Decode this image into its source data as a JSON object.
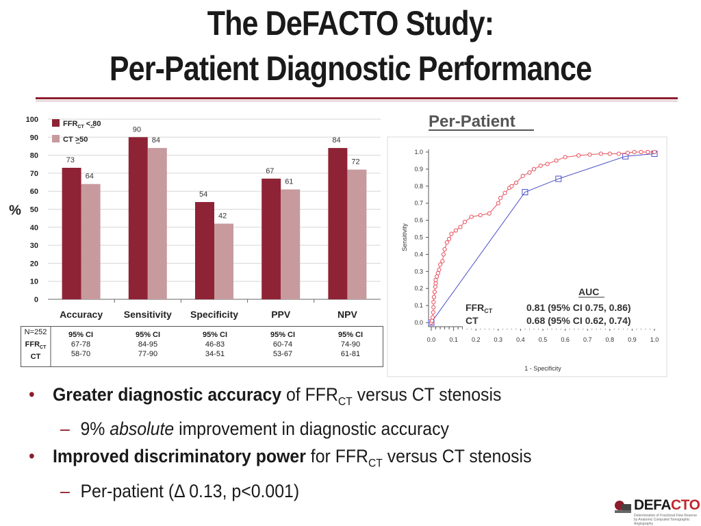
{
  "slide": {
    "title_line1": "The DeFACTO Study:",
    "title_line2": "Per-Patient Diagnostic Performance"
  },
  "colors": {
    "ffr": "#8e2335",
    "ct": "#c79a9e",
    "roc_ffr": "#e8505b",
    "roc_ct": "#4b4fc8",
    "accent": "#8b1c2c"
  },
  "chart_data": [
    {
      "type": "bar",
      "ylabel": "%",
      "ylim": [
        0,
        100
      ],
      "yticks": [
        0,
        10,
        20,
        30,
        40,
        50,
        60,
        70,
        80,
        90,
        100
      ],
      "categories": [
        "Accuracy",
        "Sensitivity",
        "Specificity",
        "PPV",
        "NPV"
      ],
      "series": [
        {
          "name": "FFR",
          "name_sub": "CT",
          "name_suffix": " <.80",
          "values": [
            73,
            90,
            54,
            67,
            84
          ]
        },
        {
          "name": "CT ",
          "name_suffix": ">50",
          "values": [
            64,
            84,
            42,
            61,
            72
          ]
        }
      ],
      "grid": true,
      "legend_position": "top-left"
    },
    {
      "type": "line",
      "title": "Per-Patient",
      "xlabel": "1 - Specificity",
      "ylabel": "Sensitivity",
      "xlim": [
        0,
        1
      ],
      "ylim": [
        0,
        1
      ],
      "xticks": [
        "0.0",
        "0.1",
        "0.2",
        "0.3",
        "0.4",
        "0.5",
        "0.6",
        "0.7",
        "0.8",
        "0.9",
        "1.0"
      ],
      "yticks": [
        "0.0",
        "0.1",
        "0.2",
        "0.3",
        "0.4",
        "0.5",
        "0.6",
        "0.7",
        "0.8",
        "0.9",
        "1.0"
      ],
      "series": [
        {
          "name": "FFR",
          "name_sub": "CT",
          "x": [
            0,
            0.003,
            0.006,
            0.009,
            0.01,
            0.01,
            0.012,
            0.015,
            0.018,
            0.02,
            0.02,
            0.025,
            0.03,
            0.035,
            0.04,
            0.05,
            0.055,
            0.06,
            0.07,
            0.08,
            0.09,
            0.11,
            0.13,
            0.15,
            0.18,
            0.22,
            0.26,
            0.3,
            0.31,
            0.33,
            0.35,
            0.36,
            0.38,
            0.41,
            0.44,
            0.46,
            0.49,
            0.52,
            0.56,
            0.6,
            0.66,
            0.71,
            0.76,
            0.8,
            0.84,
            0.88,
            0.91,
            0.94,
            0.97,
            1.0
          ],
          "y": [
            0,
            0.01,
            0.03,
            0.06,
            0.09,
            0.12,
            0.15,
            0.18,
            0.21,
            0.23,
            0.25,
            0.27,
            0.29,
            0.31,
            0.34,
            0.36,
            0.4,
            0.43,
            0.47,
            0.49,
            0.52,
            0.54,
            0.56,
            0.59,
            0.62,
            0.63,
            0.64,
            0.7,
            0.73,
            0.76,
            0.79,
            0.8,
            0.82,
            0.86,
            0.88,
            0.9,
            0.92,
            0.93,
            0.95,
            0.97,
            0.98,
            0.985,
            0.99,
            0.99,
            0.99,
            0.995,
            1.0,
            1.0,
            1.0,
            1.0
          ]
        },
        {
          "name": "CT",
          "x": [
            0,
            0.42,
            0.57,
            0.87,
            1.0
          ],
          "y": [
            0,
            0.765,
            0.843,
            0.975,
            0.99
          ]
        }
      ],
      "annotation": {
        "header": "AUC",
        "rows": [
          {
            "label": "FFR",
            "sub": "CT",
            "value": "0.81 (95% CI 0.75, 0.86)"
          },
          {
            "label": "CT",
            "sub": "",
            "value": "0.68 (95% CI 0.62, 0.74)"
          }
        ]
      }
    }
  ],
  "ci_table": {
    "n_label": "N=252",
    "row1_label": "FFR",
    "row1_sub": "CT",
    "row2_label": "CT",
    "header": "95% CI",
    "ffr": [
      "67-78",
      "84-95",
      "46-83",
      "60-74",
      "74-90"
    ],
    "ct": [
      "58-70",
      "77-90",
      "34-51",
      "53-67",
      "61-81"
    ]
  },
  "bullets": [
    {
      "bold": "Greater diagnostic accuracy",
      "pre": " of FFR",
      "sub": "CT",
      "post": " versus CT stenosis"
    },
    {
      "sub_item": true,
      "pre": "9% ",
      "italic": "absolute",
      "post": " improvement in diagnostic accuracy"
    },
    {
      "bold": "Improved discriminatory power",
      "pre": " for FFR",
      "sub": "CT",
      "post": " versus CT stenosis"
    },
    {
      "sub_item": true,
      "text": "Per-patient (Δ 0.13, p<0.001)"
    }
  ],
  "logo": {
    "name_a": "DEFA",
    "name_b": "CTO",
    "tagline": "Determination of Fractional Flow Reserve by Anatomic Computed Tomographic Angiography"
  }
}
